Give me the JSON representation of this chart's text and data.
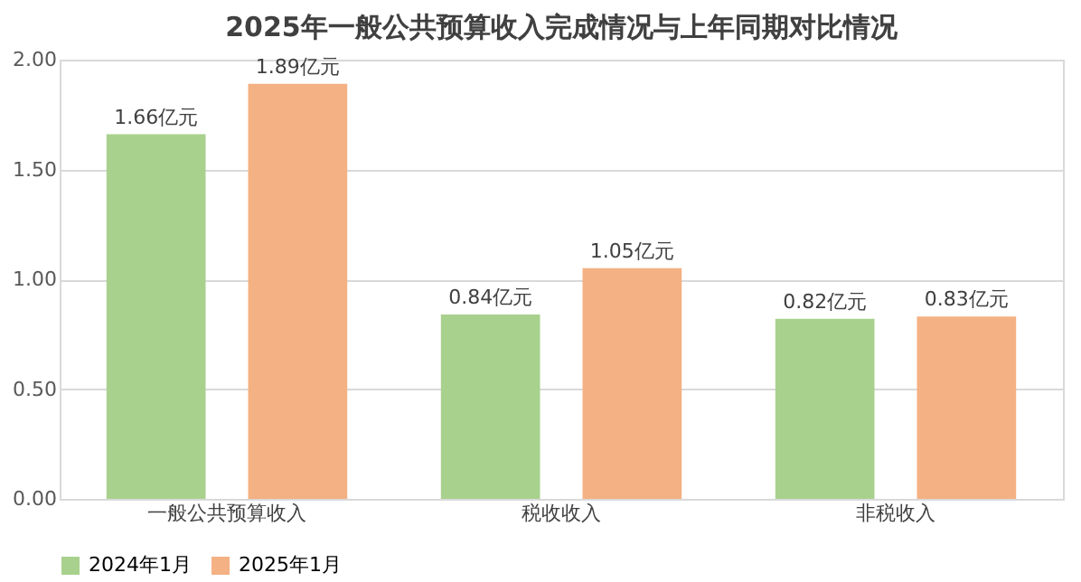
{
  "chart_data": {
    "type": "bar",
    "title": "2025年一般公共预算收入完成情况与上年同期对比情况",
    "categories": [
      "一般公共预算收入",
      "税收收入",
      "非税收入"
    ],
    "series": [
      {
        "name": "2024年1月",
        "color": "#a9d18e",
        "values": [
          1.66,
          0.84,
          0.82
        ],
        "value_labels": [
          "1.66亿元",
          "0.84亿元",
          "0.82亿元"
        ]
      },
      {
        "name": "2025年1月",
        "color": "#f4b183",
        "values": [
          1.89,
          1.05,
          0.83
        ],
        "value_labels": [
          "1.89亿元",
          "1.05亿元",
          "0.83亿元"
        ]
      }
    ],
    "ylim": [
      0,
      2
    ],
    "yticks": [
      {
        "value": 0,
        "label": "0.00"
      },
      {
        "value": 0.5,
        "label": "0.50"
      },
      {
        "value": 1,
        "label": "1.00"
      },
      {
        "value": 1.5,
        "label": "1.50"
      },
      {
        "value": 2,
        "label": "2.00"
      }
    ],
    "grid": "y",
    "legend": "bottom"
  }
}
